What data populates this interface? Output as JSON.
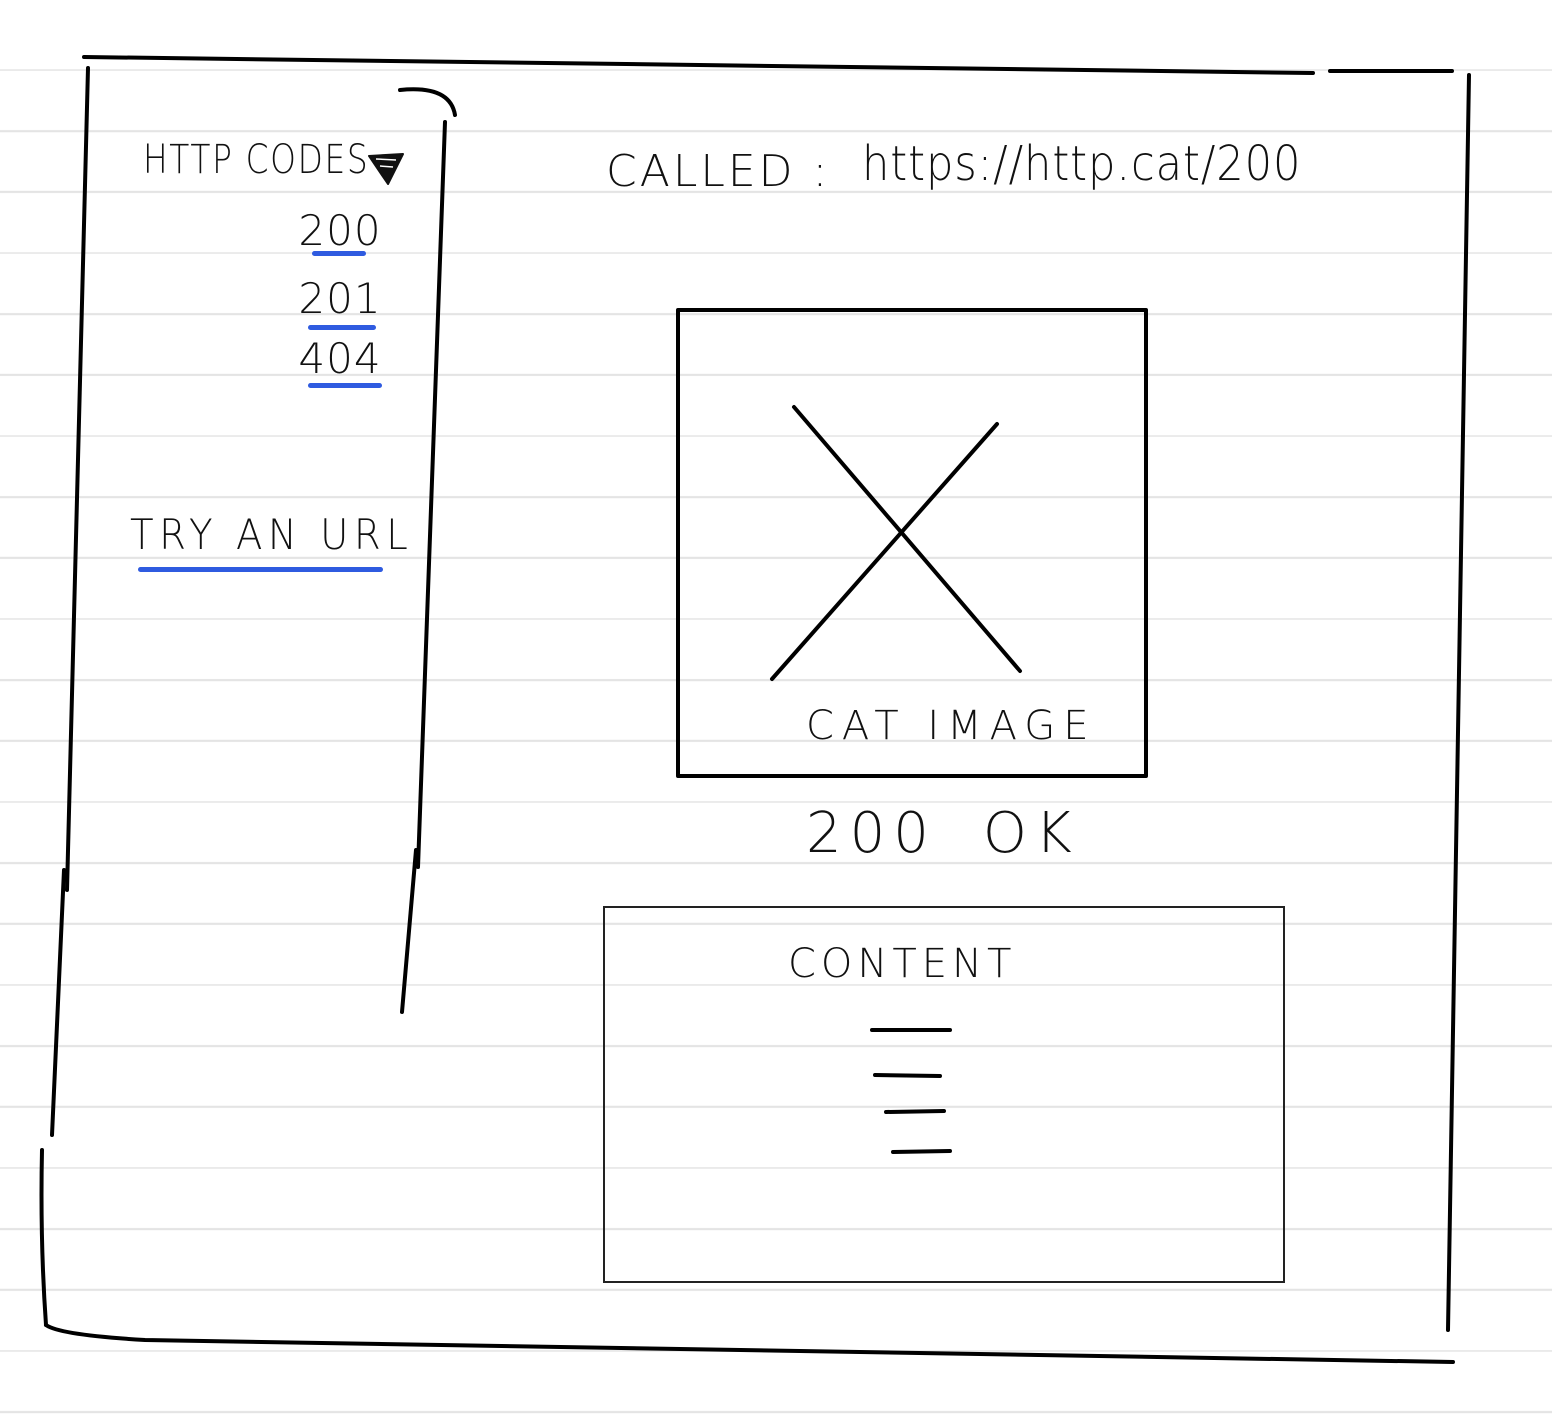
{
  "sidebar": {
    "menu_title": "HTTP CODES",
    "menu_toggle_icon": "triangle-down-icon",
    "codes": [
      "200",
      "201",
      "404"
    ],
    "try_url_label": "TRY AN URL",
    "link_underline_color": "#2f5be0"
  },
  "main": {
    "called_label": "CALLED :",
    "called_url": "https://http.cat/200",
    "image_caption": "CAT IMAGE",
    "image_placeholder_icon": "image-placeholder-x-icon",
    "status_code": "200",
    "status_text": "OK",
    "content_title": "CONTENT",
    "content_line_icon": "text-line-icon"
  }
}
